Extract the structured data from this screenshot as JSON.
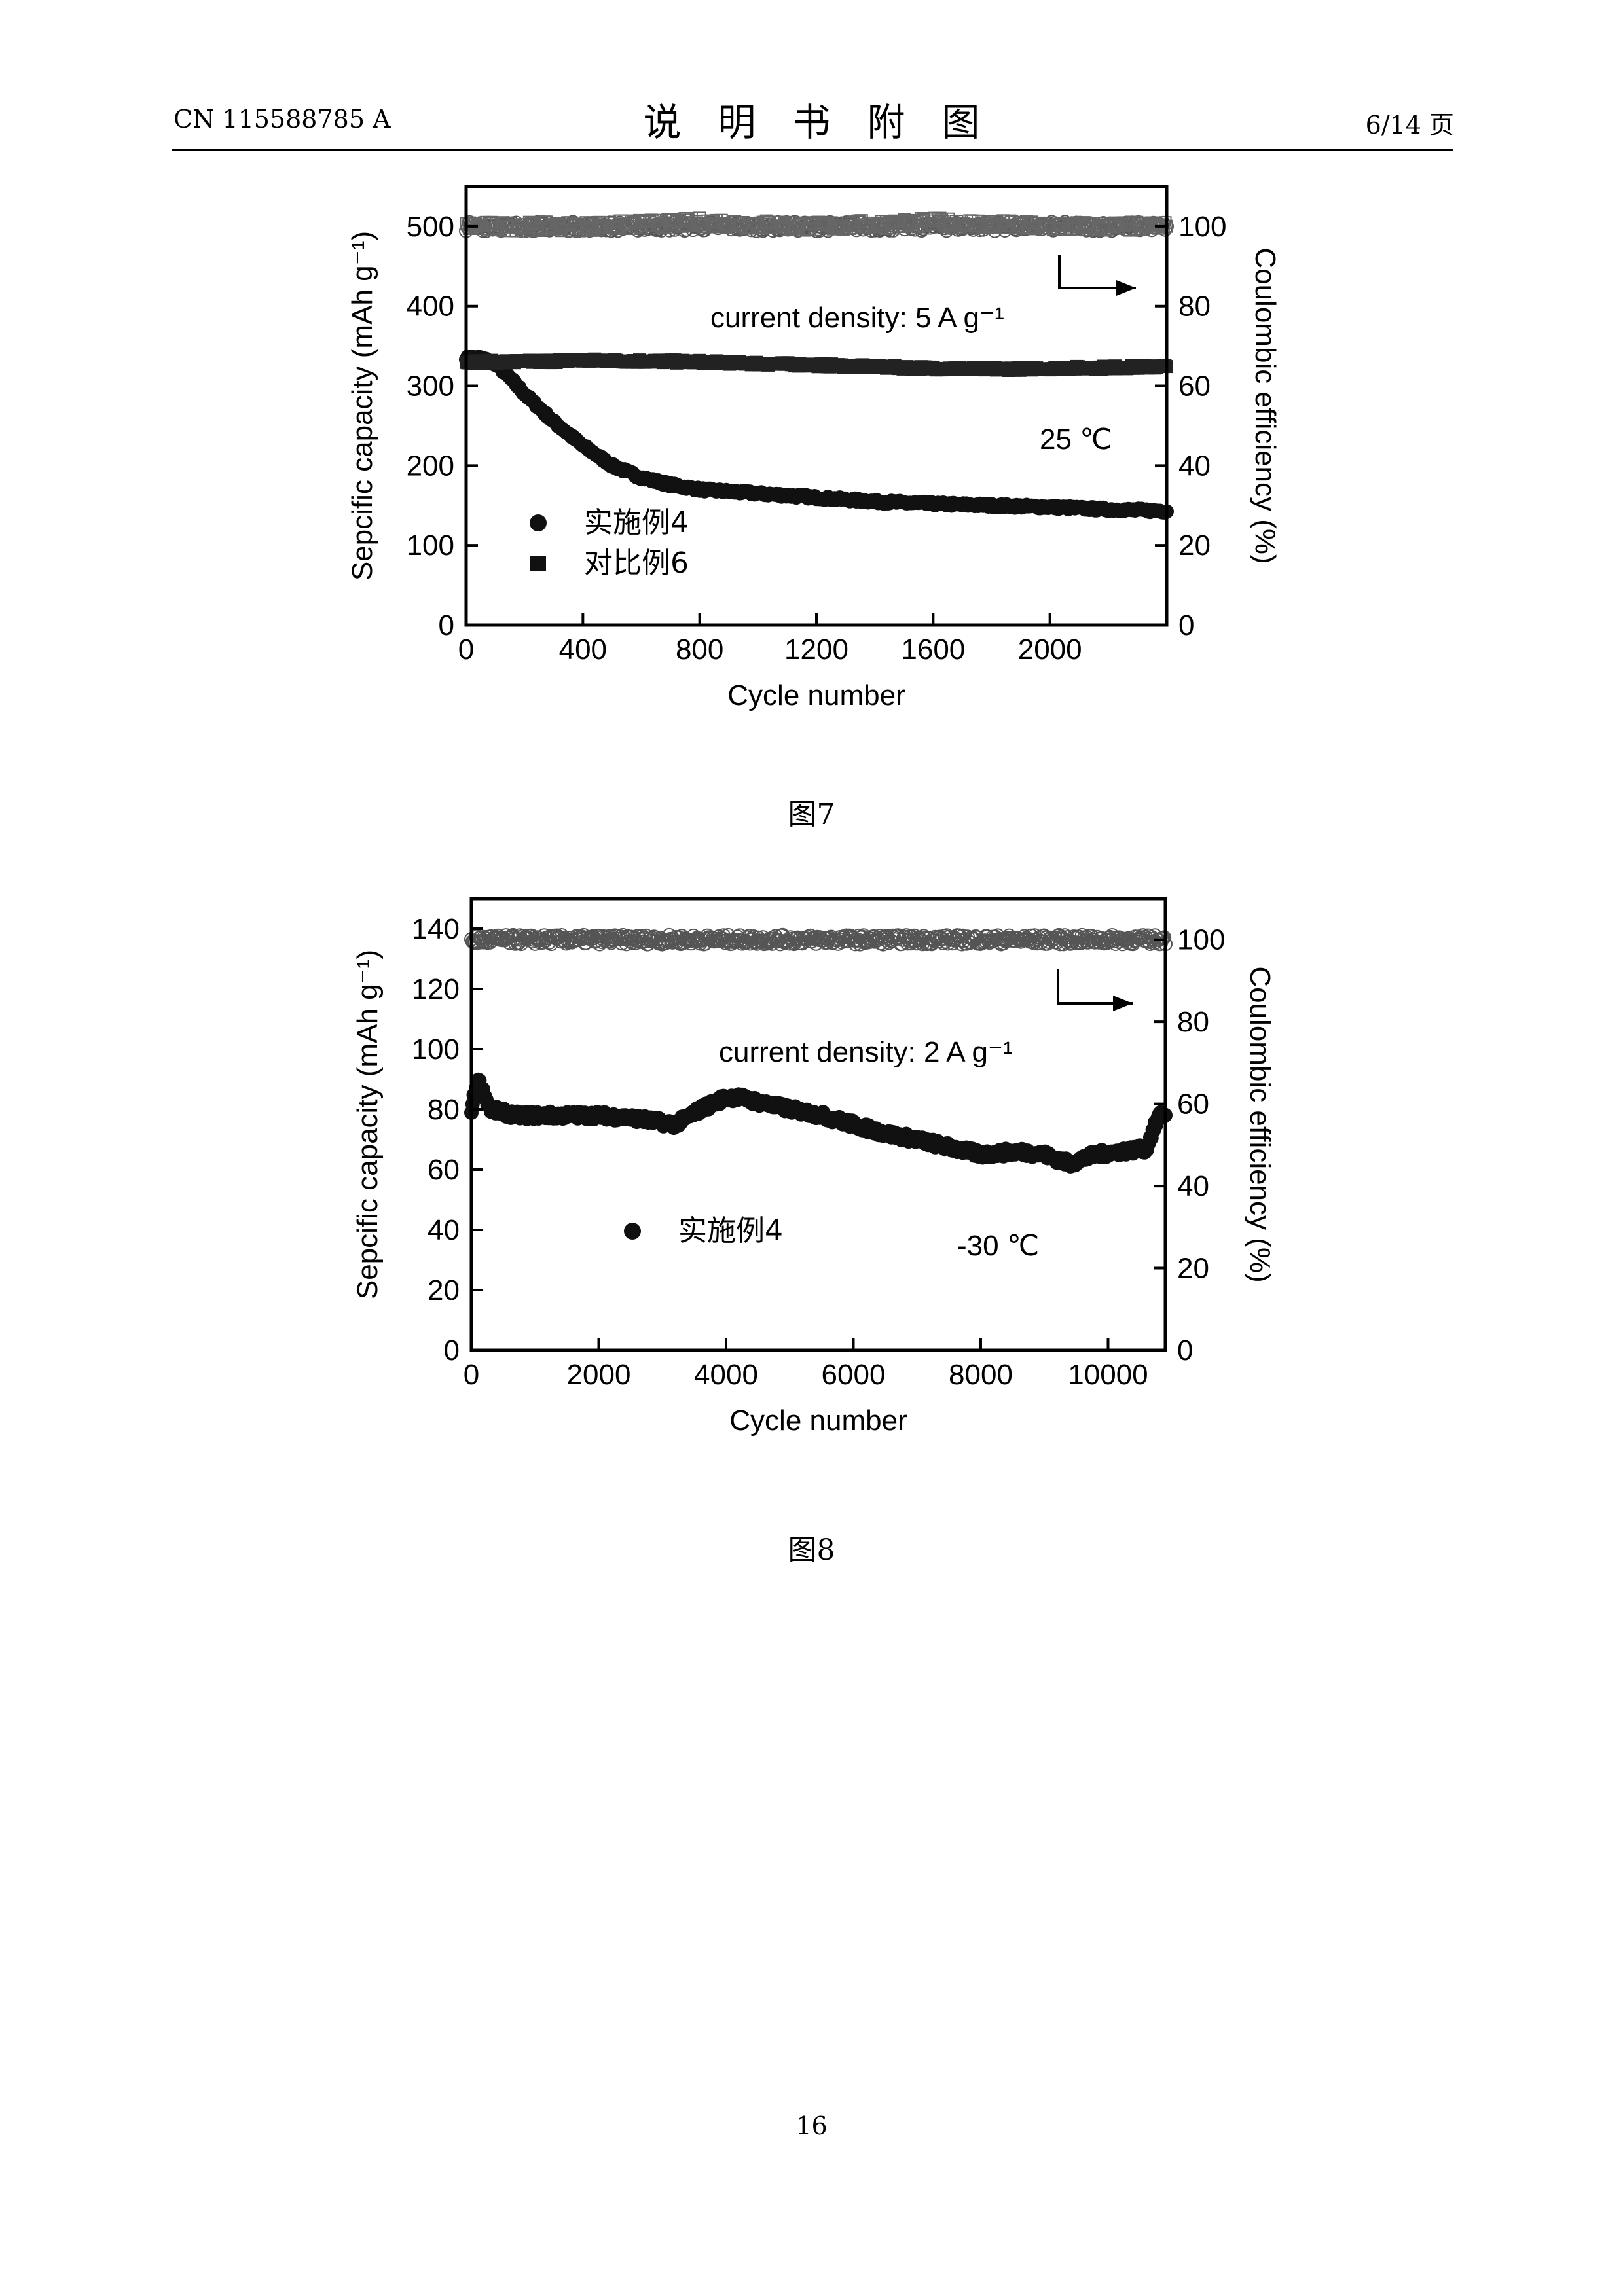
{
  "header": {
    "doc_number": "CN 115588785 A",
    "section_title": "说明书附图",
    "page_indicator": "6/14 页"
  },
  "footer": {
    "page_number": "16"
  },
  "charts": [
    {
      "caption": "图7",
      "chart_data": {
        "type": "scatter",
        "xlabel": "Cycle number",
        "ylabel": "Sepcific capacity (mAh g⁻¹)",
        "y2label": "Coulombic efficiency (%)",
        "xlim": [
          0,
          2400
        ],
        "ylim": [
          0,
          550
        ],
        "y2lim": [
          0,
          110
        ],
        "xticks": [
          0,
          400,
          800,
          1200,
          1600,
          2000
        ],
        "yticks": [
          0,
          100,
          200,
          300,
          400,
          500
        ],
        "y2ticks": [
          0,
          20,
          40,
          60,
          80,
          100
        ],
        "annotations": {
          "density": "current density: 5 A g⁻¹",
          "temperature": "25 ℃"
        },
        "legend_position": "bottom-left",
        "series": [
          {
            "name": "实施例4",
            "marker": "circle",
            "axis": "left",
            "x": [
              0,
              50,
              100,
              150,
              200,
              300,
              400,
              500,
              600,
              700,
              800,
              1000,
              1200,
              1400,
              1600,
              1800,
              2000,
              2200,
              2400
            ],
            "values": [
              335,
              335,
              328,
              310,
              290,
              255,
              225,
              200,
              185,
              176,
              170,
              165,
              160,
              155,
              152,
              150,
              148,
              145,
              143
            ]
          },
          {
            "name": "对比例6",
            "marker": "square",
            "axis": "left",
            "x": [
              0,
              100,
              200,
              400,
              600,
              800,
              1000,
              1200,
              1400,
              1600,
              1800,
              2000,
              2200,
              2400
            ],
            "values": [
              330,
              330,
              330,
              332,
              331,
              330,
              328,
              326,
              324,
              322,
              321,
              322,
              323,
              324
            ]
          },
          {
            "name": "",
            "marker": "open-circle",
            "axis": "right",
            "x": [
              0,
              400,
              800,
              1200,
              1600,
              2000,
              2400
            ],
            "values": [
              100,
              100,
              100,
              100,
              100,
              100,
              100
            ]
          },
          {
            "name": "",
            "marker": "open-square",
            "axis": "right",
            "x": [
              0,
              400,
              800,
              1200,
              1600,
              2000,
              2400
            ],
            "values": [
              100,
              100,
              101,
              100,
              101,
              100,
              100
            ]
          }
        ]
      }
    },
    {
      "caption": "图8",
      "chart_data": {
        "type": "scatter",
        "xlabel": "Cycle number",
        "ylabel": "Sepcific capacity (mAh g⁻¹)",
        "y2label": "Coulombic efficiency (%)",
        "xlim": [
          0,
          10900
        ],
        "ylim": [
          0,
          150
        ],
        "y2lim": [
          0,
          110
        ],
        "xticks": [
          0,
          2000,
          4000,
          6000,
          8000,
          10000
        ],
        "yticks": [
          0,
          20,
          40,
          60,
          80,
          100,
          120,
          140
        ],
        "y2ticks": [
          0,
          20,
          40,
          60,
          80,
          100
        ],
        "annotations": {
          "density": "current density: 2 A g⁻¹",
          "temperature": "-30 ℃"
        },
        "legend_position": "center-left",
        "series": [
          {
            "name": "实施例4",
            "marker": "circle",
            "axis": "left",
            "x": [
              0,
              100,
              300,
              700,
              1200,
              2000,
              2600,
              3200,
              3600,
              4000,
              4200,
              4800,
              5500,
              6000,
              6500,
              7000,
              7600,
              8000,
              8600,
              9000,
              9400,
              9800,
              10200,
              10600,
              10800
            ],
            "values": [
              80,
              90,
              80,
              78,
              78,
              78,
              77,
              75,
              80,
              84,
              84,
              81,
              78,
              75,
              72,
              70,
              67,
              65,
              66,
              65,
              62,
              65,
              66,
              67,
              78
            ]
          },
          {
            "name": "",
            "marker": "open-circle",
            "axis": "right",
            "x": [
              0,
              2000,
              4000,
              6000,
              8000,
              10000,
              10800
            ],
            "values": [
              100,
              100,
              100,
              100,
              100,
              100,
              100
            ]
          }
        ]
      }
    }
  ]
}
